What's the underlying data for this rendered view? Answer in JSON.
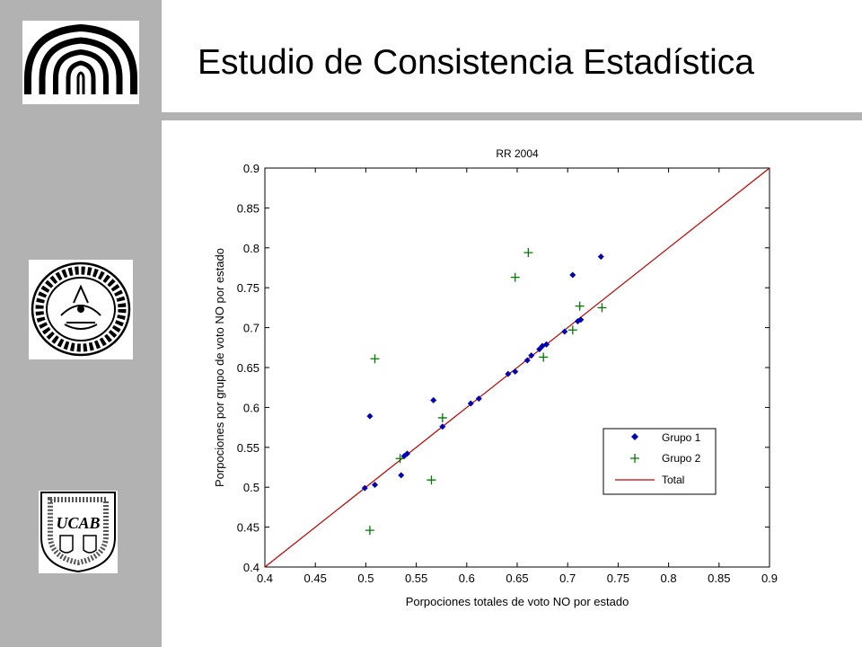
{
  "slide": {
    "title": "Estudio de Consistencia Estadística"
  },
  "logos": {
    "top": {
      "name": "usb-logo"
    },
    "middle": {
      "name": "ucv-seal",
      "text": "UNIVERSIDAD CENTRAL · CARACAS – VENEZUELA"
    },
    "bottom": {
      "name": "ucab-shield",
      "text": "UCAB"
    }
  },
  "colors": {
    "sidebar": "#b2b2b2",
    "grupo1": "#0000b4",
    "grupo2": "#007a00",
    "total": "#c00000"
  },
  "chart_data": {
    "type": "scatter",
    "title": "RR 2004",
    "xlabel": "Porpociones totales de voto NO por estado",
    "ylabel": "Porpociones por grupo de voto NO por estado",
    "xlim": [
      0.4,
      0.9
    ],
    "ylim": [
      0.4,
      0.9
    ],
    "xticks": [
      0.4,
      0.45,
      0.5,
      0.55,
      0.6,
      0.65,
      0.7,
      0.75,
      0.8,
      0.85,
      0.9
    ],
    "yticks": [
      0.4,
      0.45,
      0.5,
      0.55,
      0.6,
      0.65,
      0.7,
      0.75,
      0.8,
      0.85,
      0.9
    ],
    "xticklabels": [
      "0.4",
      "0.45",
      "0.5",
      "0.55",
      "0.6",
      "0.65",
      "0.7",
      "0.75",
      "0.8",
      "0.85",
      "0.9"
    ],
    "yticklabels": [
      "0.4",
      "0.45",
      "0.5",
      "0.55",
      "0.6",
      "0.65",
      "0.7",
      "0.75",
      "0.8",
      "0.85",
      "0.9"
    ],
    "grid": false,
    "legend_position": "lower-right",
    "series": [
      {
        "name": "Grupo 1",
        "marker": "diamond",
        "points": [
          [
            0.499,
            0.499
          ],
          [
            0.504,
            0.589
          ],
          [
            0.509,
            0.503
          ],
          [
            0.535,
            0.515
          ],
          [
            0.538,
            0.539
          ],
          [
            0.541,
            0.542
          ],
          [
            0.567,
            0.609
          ],
          [
            0.576,
            0.576
          ],
          [
            0.604,
            0.605
          ],
          [
            0.612,
            0.611
          ],
          [
            0.641,
            0.642
          ],
          [
            0.648,
            0.645
          ],
          [
            0.66,
            0.659
          ],
          [
            0.664,
            0.665
          ],
          [
            0.672,
            0.673
          ],
          [
            0.675,
            0.677
          ],
          [
            0.679,
            0.679
          ],
          [
            0.697,
            0.695
          ],
          [
            0.705,
            0.766
          ],
          [
            0.71,
            0.708
          ],
          [
            0.713,
            0.71
          ],
          [
            0.733,
            0.789
          ]
        ]
      },
      {
        "name": "Grupo 2",
        "marker": "plus",
        "points": [
          [
            0.504,
            0.446
          ],
          [
            0.509,
            0.661
          ],
          [
            0.534,
            0.536
          ],
          [
            0.565,
            0.509
          ],
          [
            0.576,
            0.587
          ],
          [
            0.648,
            0.763
          ],
          [
            0.661,
            0.794
          ],
          [
            0.676,
            0.663
          ],
          [
            0.705,
            0.697
          ],
          [
            0.712,
            0.727
          ],
          [
            0.734,
            0.725
          ]
        ]
      },
      {
        "name": "Total",
        "type": "line",
        "points": [
          [
            0.4,
            0.4
          ],
          [
            0.9,
            0.9
          ]
        ]
      }
    ]
  }
}
